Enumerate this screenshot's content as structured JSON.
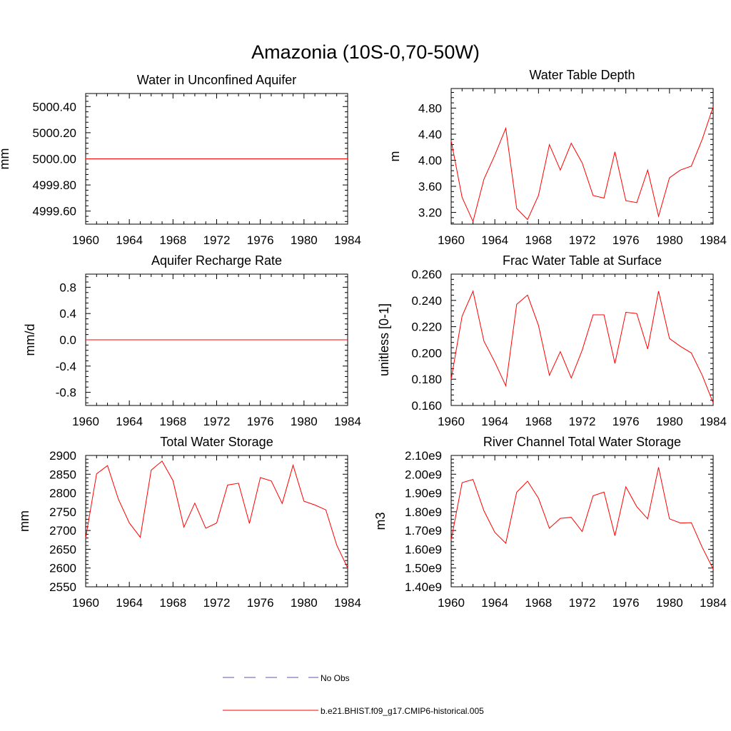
{
  "figure": {
    "title": "Amazonia (10S-0,70-50W)",
    "line_color": "#ff0000",
    "obs_color": "#5a5aaa"
  },
  "legend": {
    "entries": [
      {
        "label": "No Obs",
        "style": "dashed",
        "color": "#5a5aaa"
      },
      {
        "label": "b.e21.BHIST.f09_g17.CMIP6-historical.005",
        "style": "solid",
        "color": "#ff0000"
      }
    ]
  },
  "chart_data": [
    {
      "type": "line",
      "title": "Water in Unconfined Aquifer",
      "ylabel": "mm",
      "xlim": [
        1960,
        1984
      ],
      "xticks": [
        1960,
        1964,
        1968,
        1972,
        1976,
        1980,
        1984
      ],
      "ylim": [
        4999.5,
        5000.5
      ],
      "yticks": [
        "4999.60",
        "4999.80",
        "5000.00",
        "5000.20",
        "5000.40"
      ],
      "ytick_values": [
        4999.6,
        4999.8,
        5000.0,
        5000.2,
        5000.4
      ],
      "x": [
        1960,
        1961,
        1962,
        1963,
        1964,
        1965,
        1966,
        1967,
        1968,
        1969,
        1970,
        1971,
        1972,
        1973,
        1974,
        1975,
        1976,
        1977,
        1978,
        1979,
        1980,
        1981,
        1982,
        1983,
        1984
      ],
      "series": [
        {
          "values": [
            5000,
            5000,
            5000,
            5000,
            5000,
            5000,
            5000,
            5000,
            5000,
            5000,
            5000,
            5000,
            5000,
            5000,
            5000,
            5000,
            5000,
            5000,
            5000,
            5000,
            5000,
            5000,
            5000,
            5000,
            5000
          ]
        }
      ]
    },
    {
      "type": "line",
      "title": "Water Table Depth",
      "ylabel": "m",
      "xlim": [
        1960,
        1984
      ],
      "xticks": [
        1960,
        1964,
        1968,
        1972,
        1976,
        1980,
        1984
      ],
      "ylim": [
        3.02,
        5.1
      ],
      "yticks": [
        "3.20",
        "3.60",
        "4.00",
        "4.40",
        "4.80"
      ],
      "ytick_values": [
        3.2,
        3.6,
        4.0,
        4.4,
        4.8
      ],
      "x": [
        1960,
        1961,
        1962,
        1963,
        1964,
        1965,
        1966,
        1967,
        1968,
        1969,
        1970,
        1971,
        1972,
        1973,
        1974,
        1975,
        1976,
        1977,
        1978,
        1979,
        1980,
        1981,
        1982,
        1983,
        1984
      ],
      "series": [
        {
          "values": [
            4.3,
            3.43,
            3.06,
            3.71,
            4.08,
            4.49,
            3.26,
            3.09,
            3.46,
            4.24,
            3.85,
            4.26,
            3.96,
            3.46,
            3.42,
            4.13,
            3.38,
            3.35,
            3.85,
            3.14,
            3.73,
            3.85,
            3.91,
            4.32,
            4.82
          ]
        }
      ]
    },
    {
      "type": "line",
      "title": "Aquifer Recharge Rate",
      "ylabel": "mm/d",
      "xlim": [
        1960,
        1984
      ],
      "xticks": [
        1960,
        1964,
        1968,
        1972,
        1976,
        1980,
        1984
      ],
      "ylim": [
        -1.0,
        1.0
      ],
      "yticks": [
        "-0.8",
        "-0.4",
        "0.0",
        "0.4",
        "0.8"
      ],
      "ytick_values": [
        -0.8,
        -0.4,
        0.0,
        0.4,
        0.8
      ],
      "x": [
        1960,
        1961,
        1962,
        1963,
        1964,
        1965,
        1966,
        1967,
        1968,
        1969,
        1970,
        1971,
        1972,
        1973,
        1974,
        1975,
        1976,
        1977,
        1978,
        1979,
        1980,
        1981,
        1982,
        1983,
        1984
      ],
      "series": [
        {
          "values": [
            0,
            0,
            0,
            0,
            0,
            0,
            0,
            0,
            0,
            0,
            0,
            0,
            0,
            0,
            0,
            0,
            0,
            0,
            0,
            0,
            0,
            0,
            0,
            0,
            0
          ]
        }
      ]
    },
    {
      "type": "line",
      "title": "Frac Water Table at Surface",
      "ylabel": "unitless [0-1]",
      "xlim": [
        1960,
        1984
      ],
      "xticks": [
        1960,
        1964,
        1968,
        1972,
        1976,
        1980,
        1984
      ],
      "ylim": [
        0.16,
        0.26
      ],
      "yticks": [
        "0.160",
        "0.180",
        "0.200",
        "0.220",
        "0.240",
        "0.260"
      ],
      "ytick_values": [
        0.16,
        0.18,
        0.2,
        0.22,
        0.24,
        0.26
      ],
      "x": [
        1960,
        1961,
        1962,
        1963,
        1964,
        1965,
        1966,
        1967,
        1968,
        1969,
        1970,
        1971,
        1972,
        1973,
        1974,
        1975,
        1976,
        1977,
        1978,
        1979,
        1980,
        1981,
        1982,
        1983,
        1984
      ],
      "series": [
        {
          "values": [
            0.18,
            0.228,
            0.247,
            0.209,
            0.193,
            0.175,
            0.237,
            0.244,
            0.221,
            0.183,
            0.201,
            0.181,
            0.202,
            0.229,
            0.229,
            0.192,
            0.231,
            0.23,
            0.203,
            0.247,
            0.211,
            0.205,
            0.2,
            0.183,
            0.162
          ]
        }
      ]
    },
    {
      "type": "line",
      "title": "Total Water Storage",
      "ylabel": "mm",
      "xlim": [
        1960,
        1984
      ],
      "xticks": [
        1960,
        1964,
        1968,
        1972,
        1976,
        1980,
        1984
      ],
      "ylim": [
        2550,
        2900
      ],
      "yticks": [
        "2550",
        "2600",
        "2650",
        "2700",
        "2750",
        "2800",
        "2850",
        "2900"
      ],
      "ytick_values": [
        2550,
        2600,
        2650,
        2700,
        2750,
        2800,
        2850,
        2900
      ],
      "x": [
        1960,
        1961,
        1962,
        1963,
        1964,
        1965,
        1966,
        1967,
        1968,
        1969,
        1970,
        1971,
        1972,
        1973,
        1974,
        1975,
        1976,
        1977,
        1978,
        1979,
        1980,
        1981,
        1982,
        1983,
        1984
      ],
      "series": [
        {
          "values": [
            2680,
            2851,
            2873,
            2783,
            2720,
            2682,
            2861,
            2885,
            2833,
            2709,
            2773,
            2706,
            2720,
            2821,
            2826,
            2719,
            2841,
            2832,
            2772,
            2874,
            2778,
            2768,
            2755,
            2661,
            2600
          ]
        }
      ]
    },
    {
      "type": "line",
      "title": "River Channel Total Water Storage",
      "ylabel": "m3",
      "xlim": [
        1960,
        1984
      ],
      "xticks": [
        1960,
        1964,
        1968,
        1972,
        1976,
        1980,
        1984
      ],
      "ylim": [
        1400000000,
        2100000000
      ],
      "yticks": [
        "1.40e9",
        "1.50e9",
        "1.60e9",
        "1.70e9",
        "1.80e9",
        "1.90e9",
        "2.00e9",
        "2.10e9"
      ],
      "ytick_values": [
        1400000000,
        1500000000,
        1600000000,
        1700000000,
        1800000000,
        1900000000,
        2000000000,
        2100000000
      ],
      "x": [
        1960,
        1961,
        1962,
        1963,
        1964,
        1965,
        1966,
        1967,
        1968,
        1969,
        1970,
        1971,
        1972,
        1973,
        1974,
        1975,
        1976,
        1977,
        1978,
        1979,
        1980,
        1981,
        1982,
        1983,
        1984
      ],
      "series": [
        {
          "values": [
            1650000000,
            1955000000,
            1972000000,
            1805000000,
            1690000000,
            1632000000,
            1904000000,
            1963000000,
            1872000000,
            1712000000,
            1765000000,
            1770000000,
            1695000000,
            1885000000,
            1905000000,
            1672000000,
            1933000000,
            1827000000,
            1762000000,
            2037000000,
            1762000000,
            1740000000,
            1742000000,
            1610000000,
            1495000000
          ]
        }
      ]
    }
  ]
}
